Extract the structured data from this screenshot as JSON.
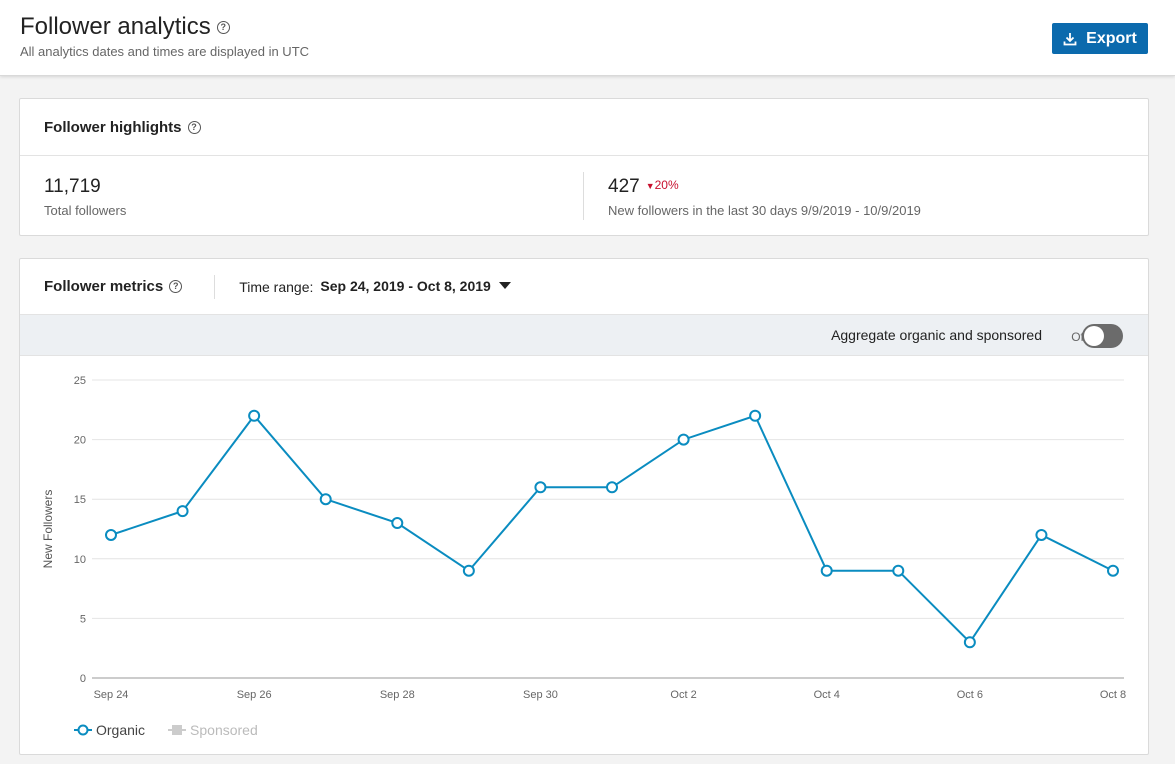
{
  "header": {
    "title": "Follower analytics",
    "subtitle": "All analytics dates and times are displayed in UTC",
    "export_label": "Export"
  },
  "highlights": {
    "title": "Follower highlights",
    "total_value": "11,719",
    "total_label": "Total followers",
    "new_value": "427",
    "new_delta": "20%",
    "new_label": "New followers in the last 30 days 9/9/2019 - 10/9/2019"
  },
  "metrics": {
    "title": "Follower metrics",
    "time_range_label": "Time range:",
    "time_range_value": "Sep 24, 2019 - Oct 8, 2019",
    "aggregate_label": "Aggregate organic and sponsored",
    "toggle_state": "Off"
  },
  "colors": {
    "accent": "#0b6aad",
    "series": "#0a8cc0",
    "negative": "#c8102e"
  },
  "chart_data": {
    "type": "line",
    "ylabel": "New Followers",
    "ylim": [
      0,
      25
    ],
    "yticks": [
      0,
      5,
      10,
      15,
      20,
      25
    ],
    "x": [
      "Sep 24",
      "Sep 25",
      "Sep 26",
      "Sep 27",
      "Sep 28",
      "Sep 29",
      "Sep 30",
      "Oct 1",
      "Oct 2",
      "Oct 3",
      "Oct 4",
      "Oct 5",
      "Oct 6",
      "Oct 7",
      "Oct 8"
    ],
    "xtick_labels": [
      "Sep 24",
      "Sep 26",
      "Sep 28",
      "Sep 30",
      "Oct 2",
      "Oct 4",
      "Oct 6",
      "Oct 8"
    ],
    "series": [
      {
        "name": "Organic",
        "values": [
          12,
          14,
          22,
          15,
          13,
          9,
          16,
          16,
          20,
          22,
          9,
          9,
          3,
          12,
          9
        ]
      }
    ],
    "legend": [
      "Organic",
      "Sponsored"
    ],
    "grid": true
  }
}
